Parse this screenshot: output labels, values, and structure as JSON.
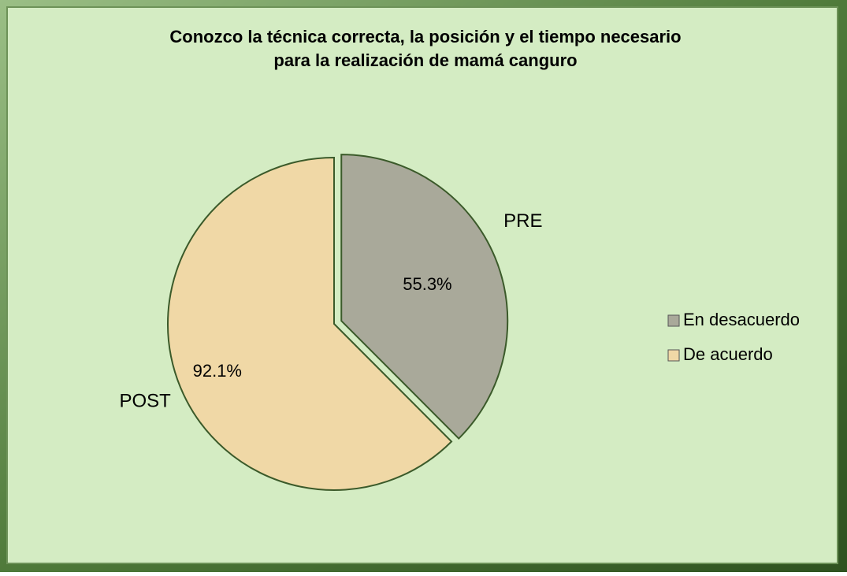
{
  "chart_data": {
    "type": "pie",
    "title": [
      "Conozco la técnica correcta, la posición y el tiempo necesario",
      "para la realización de mamá canguro"
    ],
    "categories": [
      "En desacuerdo",
      "De acuerdo"
    ],
    "slice_labels": [
      "PRE",
      "POST"
    ],
    "values": [
      55.3,
      92.1
    ],
    "value_labels": [
      "55.3%",
      "92.1%"
    ],
    "colors": [
      "#a9a99a",
      "#f0d8a6"
    ],
    "legend": "right"
  }
}
